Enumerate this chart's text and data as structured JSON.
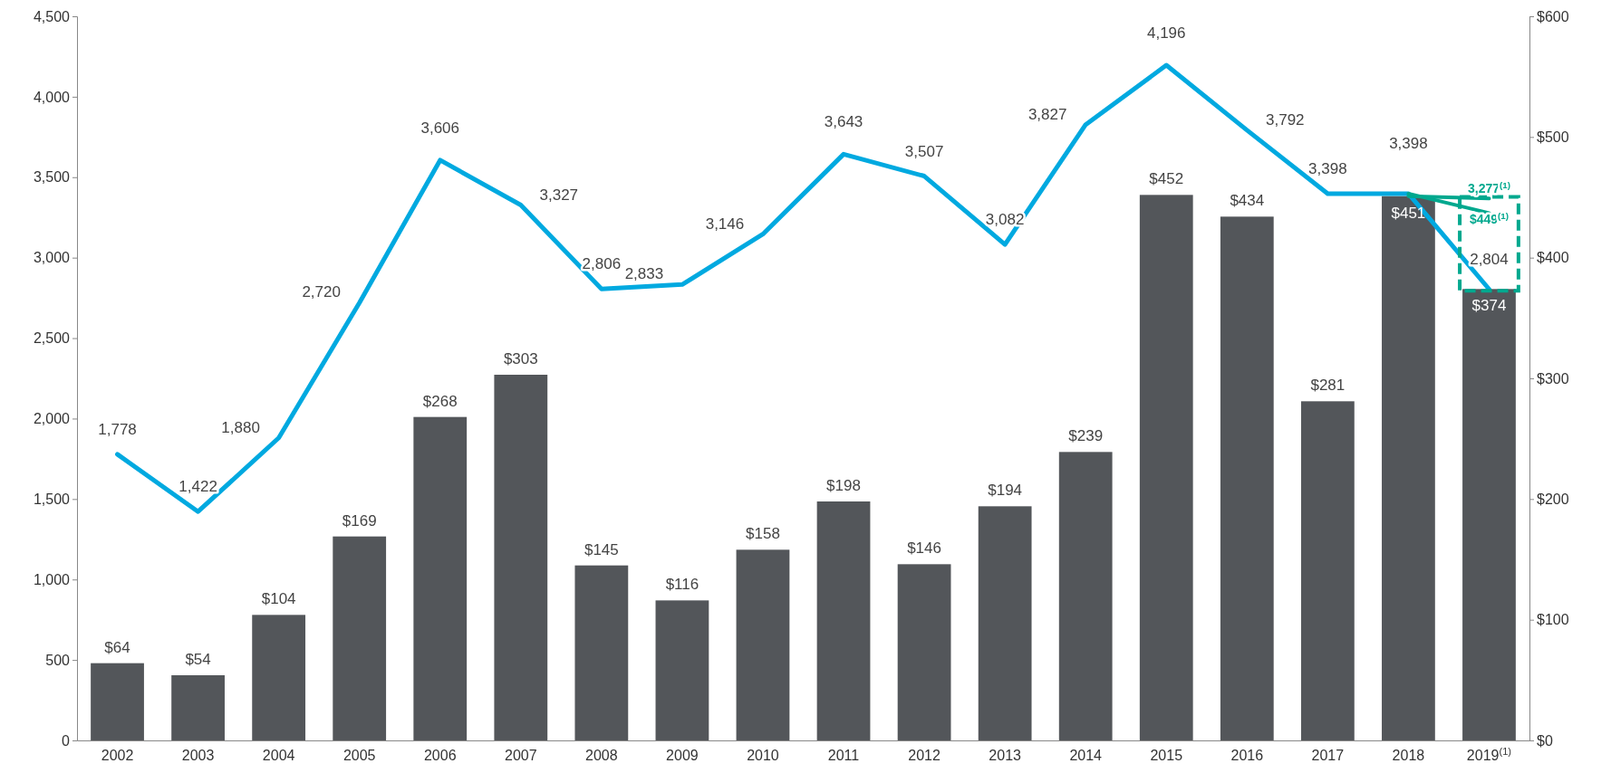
{
  "chart_data": {
    "type": "bar",
    "categories": [
      "2002",
      "2003",
      "2004",
      "2005",
      "2006",
      "2007",
      "2008",
      "2009",
      "2010",
      "2011",
      "2012",
      "2013",
      "2014",
      "2015",
      "2016",
      "2017",
      "2018",
      "2019$^{(1)}$"
    ],
    "series": [
      {
        "axis": "y2",
        "color": "#53565a",
        "values": [
          64,
          54,
          104,
          169,
          268,
          303,
          145,
          116,
          158,
          198,
          146,
          194,
          239,
          452,
          434,
          281,
          451,
          374
        ],
        "value_labels": [
          "$64",
          "$54",
          "$104",
          "$169",
          "$268",
          "$303",
          "$145",
          "$116",
          "$158",
          "$198",
          "$146",
          "$194",
          "$239",
          "$452",
          "$434",
          "$281",
          "$451",
          "$374"
        ]
      },
      {
        "type": "line",
        "axis": "y",
        "color": "#00a9e0",
        "values": [
          1778,
          1422,
          1880,
          2720,
          3606,
          3327,
          2806,
          2833,
          3146,
          3643,
          3507,
          3082,
          3827,
          4196,
          3792,
          3398,
          3398,
          2804
        ],
        "value_labels": [
          "1,778",
          "1,422",
          "1,880",
          "2,720",
          "3,606",
          "3,327",
          "2,806",
          "2,833",
          "3,146",
          "3,643",
          "3,507",
          "3,082",
          "3,827",
          "4,196",
          "3,792",
          "3,398",
          "3,398",
          "2,804"
        ]
      },
      {
        "type": "line",
        "axis": "y",
        "color": "#00a88e",
        "values": [
          null,
          null,
          null,
          null,
          null,
          null,
          null,
          null,
          null,
          null,
          null,
          null,
          null,
          null,
          null,
          null,
          3398,
          3277
        ],
        "value_labels": [
          null,
          null,
          null,
          null,
          null,
          null,
          null,
          null,
          null,
          null,
          null,
          null,
          null,
          null,
          null,
          null,
          null,
          "3,277$^{(1)}$"
        ]
      },
      {
        "type": "line",
        "axis": "y2",
        "color": "#00a88e",
        "values": [
          null,
          null,
          null,
          null,
          null,
          null,
          null,
          null,
          null,
          null,
          null,
          null,
          null,
          null,
          null,
          null,
          451,
          449
        ],
        "value_labels": [
          null,
          null,
          null,
          null,
          null,
          null,
          null,
          null,
          null,
          null,
          null,
          null,
          null,
          null,
          null,
          null,
          null,
          "$449$^{(1)}$"
        ]
      }
    ],
    "ylim": [
      0,
      4500
    ],
    "yticks": [
      0,
      500,
      {
        "value": 1000,
        "label": "1,000"
      },
      {
        "value": 1500,
        "label": "1,500"
      },
      {
        "value": 2000,
        "label": "2,000"
      },
      {
        "value": 2500,
        "label": "2,500"
      },
      {
        "value": 3000,
        "label": "3,000"
      },
      {
        "value": 3500,
        "label": "3,500"
      },
      {
        "value": 4000,
        "label": "4,000"
      },
      {
        "value": 4500,
        "label": "4,500"
      }
    ],
    "y2lim": [
      0,
      600
    ],
    "y2ticks": [
      {
        "value": 0,
        "label": "$0"
      },
      {
        "value": 100,
        "label": "$100"
      },
      {
        "value": 200,
        "label": "$200"
      },
      {
        "value": 300,
        "label": "$300"
      },
      {
        "value": 400,
        "label": "$400"
      },
      {
        "value": 500,
        "label": "$500"
      },
      {
        "value": 600,
        "label": "$600"
      }
    ],
    "grid": false
  }
}
